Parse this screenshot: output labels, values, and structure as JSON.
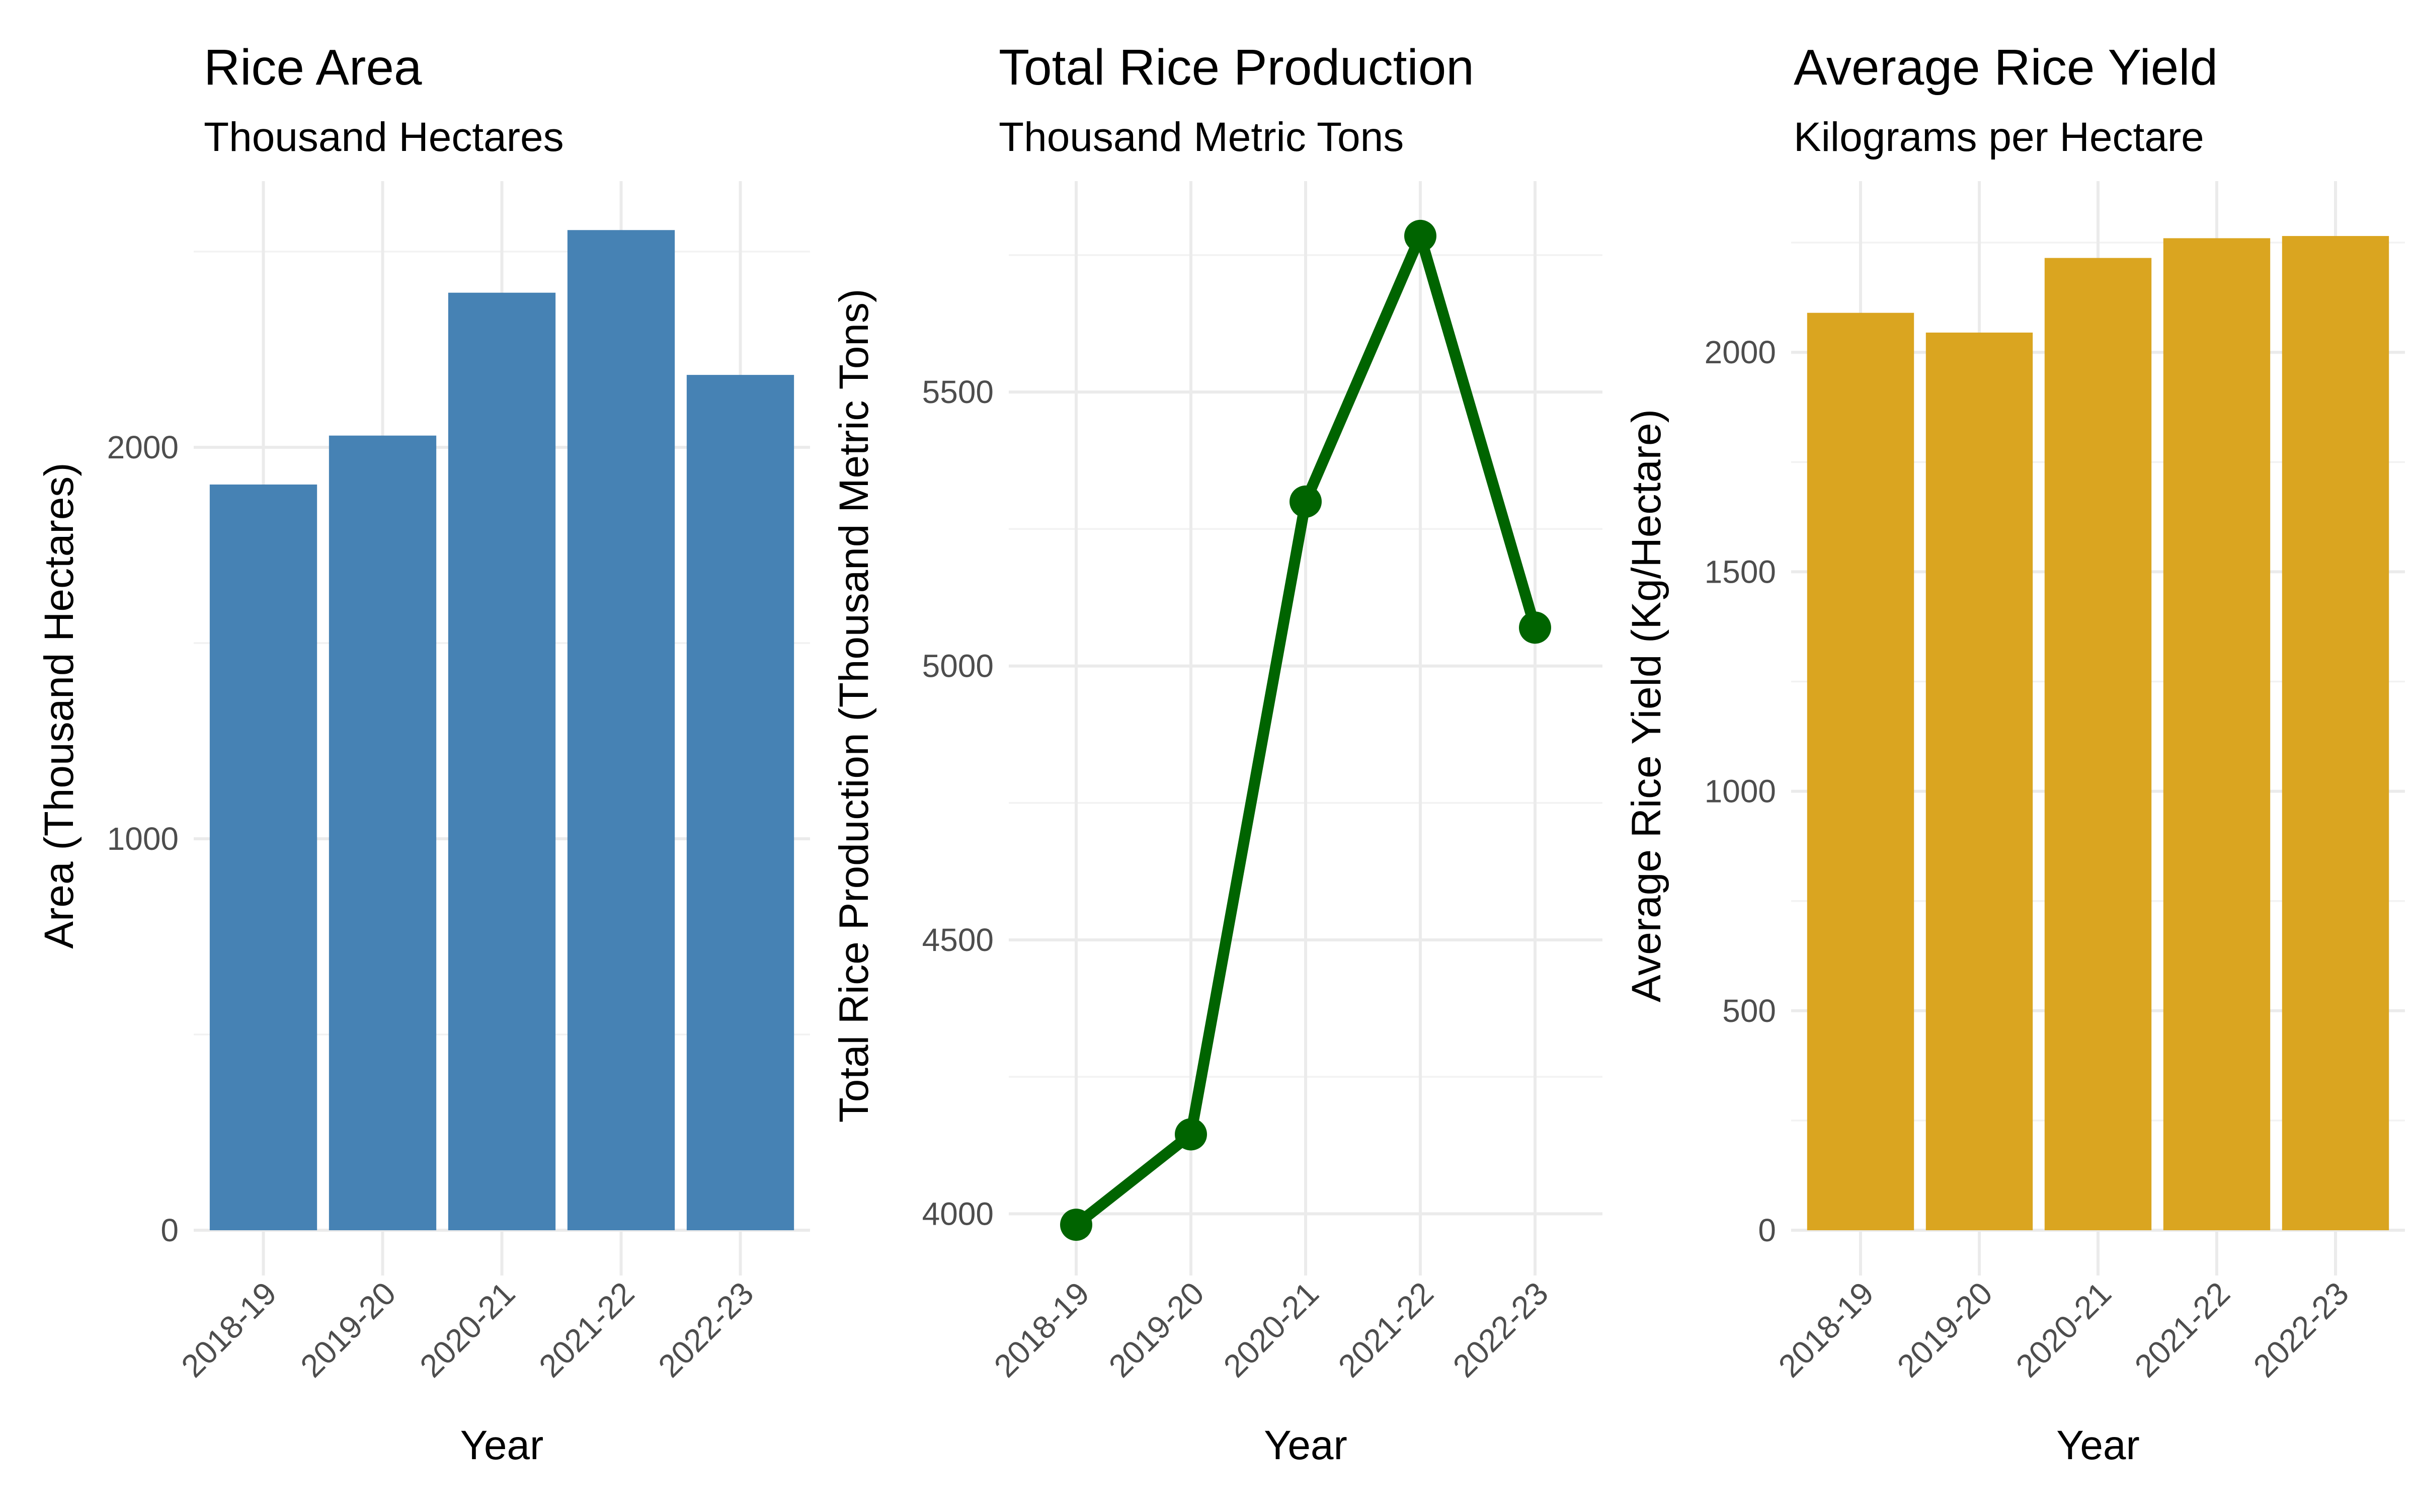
{
  "chart_data": [
    {
      "type": "bar",
      "title": "Rice Area",
      "subtitle": "Thousand Hectares",
      "xlabel": "Year",
      "ylabel": "Area (Thousand Hectares)",
      "categories": [
        "2018-19",
        "2019-20",
        "2020-21",
        "2021-22",
        "2022-23"
      ],
      "values": [
        1905,
        2030,
        2395,
        2555,
        2185
      ],
      "ylim": [
        0,
        2680
      ],
      "yticks": [
        0,
        1000,
        2000
      ],
      "y_tick_labels": [
        "0",
        "1000",
        "2000"
      ],
      "color": "#4682b4",
      "grid": true
    },
    {
      "type": "line",
      "title": "Total Rice Production",
      "subtitle": "Thousand Metric Tons",
      "xlabel": "Year",
      "ylabel": "Total Rice Production (Thousand Metric Tons)",
      "categories": [
        "2018-19",
        "2019-20",
        "2020-21",
        "2021-22",
        "2022-23"
      ],
      "values": [
        3980,
        4145,
        5300,
        5785,
        5070
      ],
      "ylim": [
        3970,
        5885
      ],
      "yticks": [
        4000,
        4500,
        5000,
        5500
      ],
      "y_tick_labels": [
        "4000",
        "4500",
        "5000",
        "5500"
      ],
      "color": "#006400",
      "grid": true
    },
    {
      "type": "bar",
      "title": "Average Rice Yield",
      "subtitle": "Kilograms per Hectare",
      "xlabel": "Year",
      "ylabel": "Average Rice Yield (Kg/Hectare)",
      "categories": [
        "2018-19",
        "2019-20",
        "2020-21",
        "2021-22",
        "2022-23"
      ],
      "values": [
        2090,
        2045,
        2215,
        2260,
        2265
      ],
      "ylim": [
        0,
        2390
      ],
      "yticks": [
        0,
        500,
        1000,
        1500,
        2000
      ],
      "y_tick_labels": [
        "0",
        "500",
        "1000",
        "1500",
        "2000"
      ],
      "color": "#daa520",
      "grid": true
    }
  ]
}
